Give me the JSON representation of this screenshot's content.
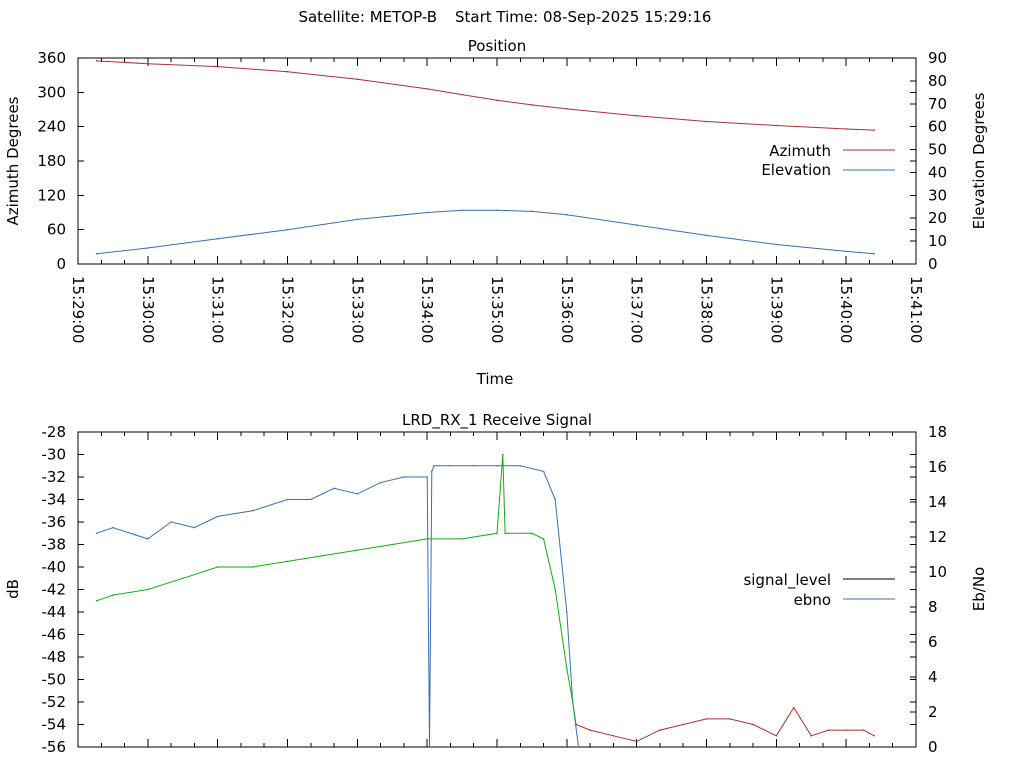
{
  "header": {
    "satellite": "Satellite: METOP-B",
    "start_time": "Start Time: 08-Sep-2025 15:29:16"
  },
  "colors": {
    "azimuth": "#a83232",
    "elevation": "#3a6fb0",
    "signal_level": "#000000",
    "ebno": "#3a6fb0",
    "trace_blue": "#3a6fb0",
    "trace_green": "#1aa81a",
    "trace_red": "#a83232"
  },
  "chart_data": [
    {
      "type": "line",
      "title": "Position",
      "xlabel": "Time",
      "ylabel": "Azimuth Degrees",
      "y2label": "Elevation Degrees",
      "ylim": [
        0,
        360
      ],
      "y2lim": [
        0,
        90
      ],
      "yticks": [
        "0",
        "60",
        "120",
        "180",
        "240",
        "300",
        "360"
      ],
      "y2ticks": [
        "0",
        "10",
        "20",
        "30",
        "40",
        "50",
        "60",
        "70",
        "80",
        "90"
      ],
      "xlim": [
        "15:29:00",
        "15:41:00"
      ],
      "xticks": [
        "15:29:00",
        "15:30:00",
        "15:31:00",
        "15:32:00",
        "15:33:00",
        "15:34:00",
        "15:35:00",
        "15:36:00",
        "15:37:00",
        "15:38:00",
        "15:39:00",
        "15:40:00",
        "15:41:00"
      ],
      "legend_position": "right",
      "grid": false,
      "series": [
        {
          "name": "Azimuth",
          "axis": "left",
          "color": "#a83232",
          "x": [
            "15:29:16",
            "15:30:00",
            "15:31:00",
            "15:32:00",
            "15:33:00",
            "15:34:00",
            "15:34:30",
            "15:35:00",
            "15:35:30",
            "15:36:00",
            "15:37:00",
            "15:38:00",
            "15:39:00",
            "15:40:00",
            "15:40:24"
          ],
          "values": [
            355,
            350,
            345,
            336,
            323,
            306,
            296,
            286,
            278,
            271,
            259,
            249,
            242,
            236,
            234
          ]
        },
        {
          "name": "Elevation",
          "axis": "right",
          "color": "#3a6fb0",
          "x": [
            "15:29:16",
            "15:30:00",
            "15:31:00",
            "15:32:00",
            "15:33:00",
            "15:34:00",
            "15:34:30",
            "15:35:00",
            "15:35:30",
            "15:36:00",
            "15:37:00",
            "15:38:00",
            "15:39:00",
            "15:40:00",
            "15:40:24"
          ],
          "values": [
            4.5,
            7,
            11,
            15,
            19.5,
            22.5,
            23.5,
            23.5,
            23,
            21.5,
            17,
            12.5,
            8.5,
            5.5,
            4.5
          ]
        }
      ]
    },
    {
      "type": "line",
      "title": "LRD_RX_1 Receive Signal",
      "ylabel": "dB",
      "y2label": "Eb/No",
      "ylim": [
        -56,
        -28
      ],
      "y2lim": [
        0,
        18
      ],
      "yticks": [
        "-56",
        "-54",
        "-52",
        "-50",
        "-48",
        "-46",
        "-44",
        "-42",
        "-40",
        "-38",
        "-36",
        "-34",
        "-32",
        "-30",
        "-28"
      ],
      "y2ticks": [
        "0",
        "2",
        "4",
        "6",
        "8",
        "10",
        "12",
        "14",
        "16",
        "18"
      ],
      "xlim": [
        "15:29:00",
        "15:41:00"
      ],
      "legend_position": "right",
      "grid": false,
      "legend": [
        {
          "name": "signal_level",
          "color": "#000000"
        },
        {
          "name": "ebno",
          "color": "#3a6fb0"
        }
      ],
      "series": [
        {
          "color": "#3a6fb0",
          "axis": "left",
          "x": [
            "15:29:16",
            "15:29:30",
            "15:30:00",
            "15:30:20",
            "15:30:40",
            "15:31:00",
            "15:31:30",
            "15:32:00",
            "15:32:20",
            "15:32:40",
            "15:33:00",
            "15:33:20",
            "15:33:40",
            "15:34:00",
            "15:34:02",
            "15:34:04",
            "15:34:06",
            "15:34:20",
            "15:34:40",
            "15:35:00",
            "15:35:20",
            "15:35:40",
            "15:35:50",
            "15:36:00",
            "15:36:05",
            "15:36:10"
          ],
          "values": [
            -37,
            -36.5,
            -37.5,
            -36,
            -36.5,
            -35.5,
            -35,
            -34,
            -34,
            -33,
            -33.5,
            -32.5,
            -32,
            -32,
            -56,
            -31.5,
            -31,
            -31,
            -31,
            -31,
            -31,
            -31.5,
            -34,
            -44,
            -52,
            -56
          ]
        },
        {
          "color": "#1aa81a",
          "axis": "left",
          "x": [
            "15:29:16",
            "15:29:30",
            "15:30:00",
            "15:30:30",
            "15:31:00",
            "15:31:30",
            "15:32:00",
            "15:32:30",
            "15:33:00",
            "15:33:30",
            "15:34:00",
            "15:34:30",
            "15:35:00",
            "15:35:05",
            "15:35:07",
            "15:35:10",
            "15:35:30",
            "15:35:40",
            "15:35:50",
            "15:36:00",
            "15:36:05",
            "15:36:08"
          ],
          "values": [
            -43,
            -42.5,
            -42,
            -41,
            -40,
            -40,
            -39.5,
            -39,
            -38.5,
            -38,
            -37.5,
            -37.5,
            -37,
            -30,
            -37,
            -37,
            -37,
            -37.5,
            -42,
            -49,
            -52,
            -54
          ]
        },
        {
          "color": "#a83232",
          "axis": "left",
          "x": [
            "15:36:08",
            "15:36:20",
            "15:36:40",
            "15:37:00",
            "15:37:20",
            "15:37:40",
            "15:38:00",
            "15:38:20",
            "15:38:40",
            "15:39:00",
            "15:39:15",
            "15:39:30",
            "15:39:45",
            "15:40:00",
            "15:40:15",
            "15:40:24"
          ],
          "values": [
            -54,
            -54.5,
            -55,
            -55.5,
            -54.5,
            -54,
            -53.5,
            -53.5,
            -54,
            -55,
            -52.5,
            -55,
            -54.5,
            -54.5,
            -54.5,
            -55
          ]
        }
      ]
    }
  ]
}
